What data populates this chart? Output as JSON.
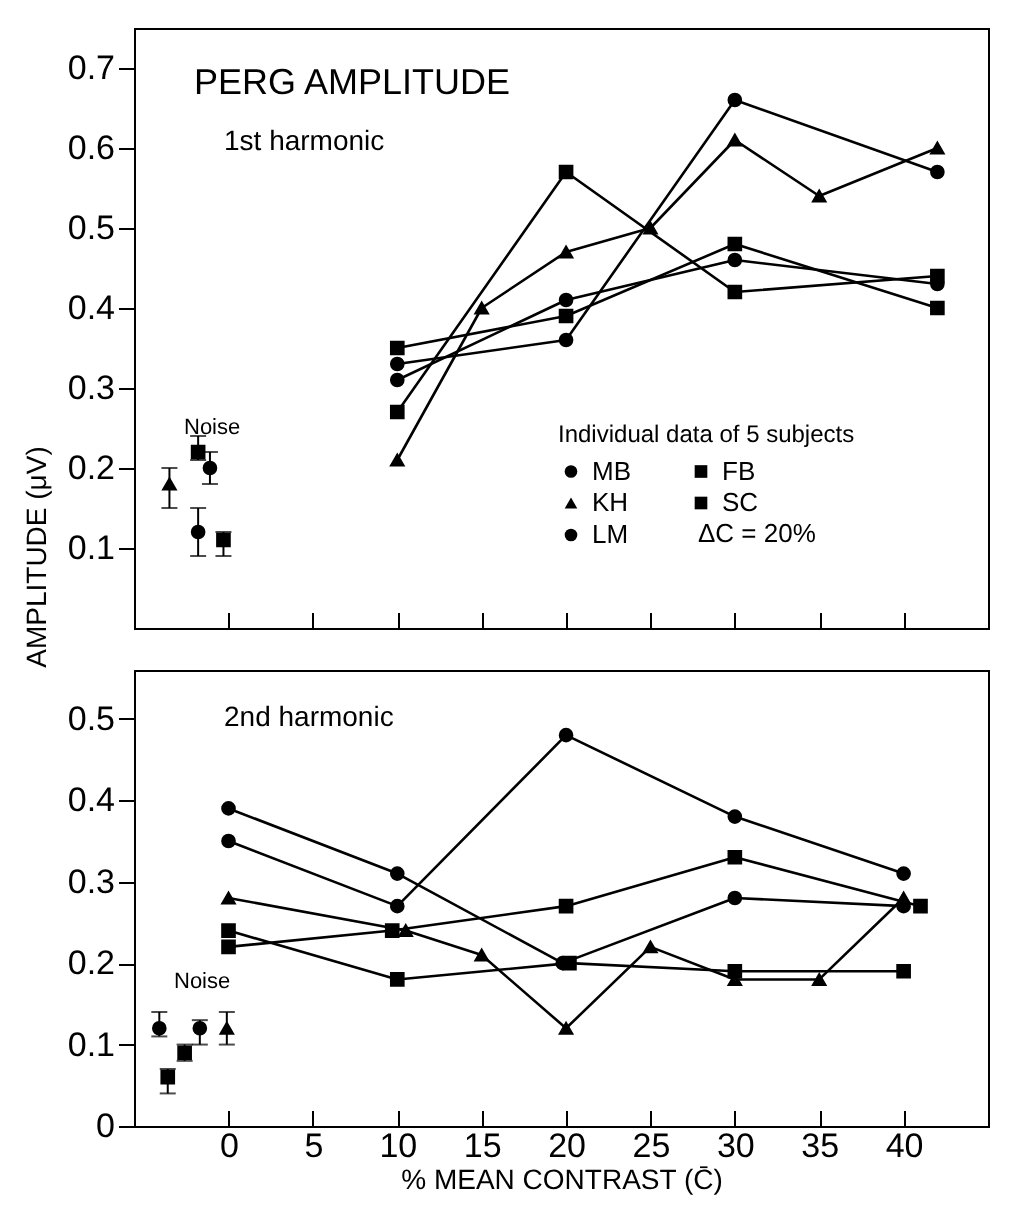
{
  "chart_data": [
    {
      "type": "line",
      "title": "PERG AMPLITUDE",
      "subtitle": "1st harmonic",
      "ylabel": "AMPLITUDE (μV)",
      "legend_title": "Individual data of 5 subjects",
      "legend": "bottom right",
      "tick_labels": "y",
      "xlim": [
        -5.6,
        45
      ],
      "xticks": [
        0,
        5,
        10,
        15,
        20,
        25,
        30,
        35,
        40
      ],
      "ylim": [
        0,
        0.75
      ],
      "yticks": [
        0.1,
        0.2,
        0.3,
        0.4,
        0.5,
        0.6,
        0.7
      ],
      "annotations": [
        "Noise",
        "ΔC = 20%"
      ],
      "series": [
        {
          "name": "MB",
          "color": "#000000",
          "marker": "circle",
          "x": [
            10,
            20,
            30,
            42
          ],
          "values": [
            0.33,
            0.36,
            0.66,
            0.57
          ]
        },
        {
          "name": "KH",
          "color": "#000000",
          "marker": "triangle",
          "x": [
            10,
            15,
            20,
            25,
            30,
            35,
            42
          ],
          "values": [
            0.21,
            0.4,
            0.47,
            0.5,
            0.61,
            0.54,
            0.6
          ]
        },
        {
          "name": "LM",
          "color": "#000000",
          "marker": "circle",
          "x": [
            10,
            20,
            30,
            42
          ],
          "values": [
            0.31,
            0.41,
            0.46,
            0.43
          ]
        },
        {
          "name": "FB",
          "color": "#000000",
          "marker": "square",
          "x": [
            10,
            20,
            30,
            42
          ],
          "values": [
            0.27,
            0.57,
            0.42,
            0.44
          ]
        },
        {
          "name": "SC",
          "color": "#000000",
          "marker": "square",
          "x": [
            10,
            20,
            30,
            42
          ],
          "values": [
            0.35,
            0.39,
            0.48,
            0.4
          ]
        },
        {
          "type": "scatter",
          "color": "#000000",
          "marker": "triangle",
          "x": [
            -3.5
          ],
          "values": [
            0.18
          ],
          "errors": [
            [
              0.15,
              0.2
            ]
          ]
        },
        {
          "type": "scatter",
          "color": "#000000",
          "marker": "square",
          "x": [
            -1.8
          ],
          "values": [
            0.22
          ],
          "errors": [
            [
              0.21,
              0.24
            ]
          ]
        },
        {
          "type": "scatter",
          "color": "#000000",
          "marker": "circle",
          "x": [
            -1.1
          ],
          "values": [
            0.2
          ],
          "errors": [
            [
              0.18,
              0.22
            ]
          ]
        },
        {
          "type": "scatter",
          "color": "#000000",
          "marker": "circle",
          "x": [
            -1.8
          ],
          "values": [
            0.12
          ],
          "errors": [
            [
              0.09,
              0.15
            ]
          ]
        },
        {
          "type": "scatter",
          "color": "#000000",
          "marker": "square",
          "x": [
            -0.3
          ],
          "values": [
            0.11
          ],
          "errors": [
            [
              0.09,
              0.12
            ]
          ]
        }
      ]
    },
    {
      "type": "line",
      "subtitle": "2nd harmonic",
      "xlabel": "% MEAN CONTRAST (C̄)",
      "legend": false,
      "xlim": [
        -5.6,
        45
      ],
      "xticks": [
        0,
        5,
        10,
        15,
        20,
        25,
        30,
        35,
        40
      ],
      "ylim": [
        0,
        0.56
      ],
      "yticks": [
        0,
        0.1,
        0.2,
        0.3,
        0.4,
        0.5
      ],
      "annotations": [
        "Noise"
      ],
      "series": [
        {
          "color": "#000000",
          "marker": "circle",
          "x": [
            0,
            10,
            20,
            30,
            40
          ],
          "values": [
            0.35,
            0.27,
            0.48,
            0.38,
            0.31
          ]
        },
        {
          "color": "#000000",
          "marker": "triangle",
          "x": [
            0,
            10.5,
            15,
            20,
            25,
            30,
            35,
            40
          ],
          "values": [
            0.28,
            0.24,
            0.21,
            0.12,
            0.22,
            0.18,
            0.18,
            0.28
          ]
        },
        {
          "color": "#000000",
          "marker": "circle",
          "x": [
            0,
            10,
            19.8,
            30,
            40
          ],
          "values": [
            0.39,
            0.31,
            0.2,
            0.28,
            0.27
          ]
        },
        {
          "color": "#000000",
          "marker": "square",
          "x": [
            0,
            9.7,
            20,
            30,
            41
          ],
          "values": [
            0.22,
            0.24,
            0.27,
            0.33,
            0.27
          ]
        },
        {
          "color": "#000000",
          "marker": "square",
          "x": [
            0,
            10,
            20.2,
            30,
            40
          ],
          "values": [
            0.24,
            0.18,
            0.2,
            0.19,
            0.19
          ]
        },
        {
          "type": "scatter",
          "color": "#000000",
          "marker": "circle",
          "x": [
            -4.1
          ],
          "values": [
            0.12
          ],
          "errors": [
            [
              0.11,
              0.14
            ]
          ]
        },
        {
          "type": "scatter",
          "color": "#000000",
          "marker": "square",
          "x": [
            -3.6
          ],
          "values": [
            0.06
          ],
          "errors": [
            [
              0.04,
              0.07
            ]
          ]
        },
        {
          "type": "scatter",
          "color": "#000000",
          "marker": "square",
          "x": [
            -2.6
          ],
          "values": [
            0.09
          ],
          "errors": [
            [
              0.08,
              0.1
            ]
          ]
        },
        {
          "type": "scatter",
          "color": "#000000",
          "marker": "circle",
          "x": [
            -1.7
          ],
          "values": [
            0.12
          ],
          "errors": [
            [
              0.1,
              0.13
            ]
          ]
        },
        {
          "type": "scatter",
          "color": "#000000",
          "marker": "triangle",
          "x": [
            -0.1
          ],
          "values": [
            0.12
          ],
          "errors": [
            [
              0.1,
              0.14
            ]
          ]
        }
      ]
    }
  ]
}
